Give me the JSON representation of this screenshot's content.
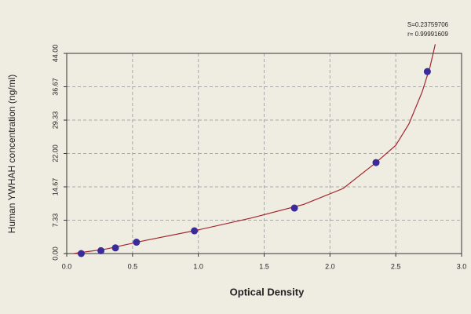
{
  "chart_data": {
    "type": "scatter",
    "x_label": "Optical Density",
    "y_label": "Human  YWHAH concentration (ng/ml)",
    "annotations": [
      "S=0.23759706",
      "r= 0.99991609"
    ],
    "x": [
      0.11,
      0.26,
      0.37,
      0.53,
      0.97,
      1.73,
      2.35,
      2.74
    ],
    "values": [
      0,
      0.625,
      1.25,
      2.5,
      5,
      10,
      20,
      40
    ],
    "color": "#3a2a9a",
    "fit": {
      "x": [
        0.05,
        0.3,
        0.6,
        1.0,
        1.4,
        1.8,
        2.1,
        2.35,
        2.5,
        2.6,
        2.7,
        2.76,
        2.8
      ],
      "values": [
        0,
        1.0,
        2.9,
        5.2,
        7.8,
        10.8,
        14.3,
        20,
        23.8,
        28.5,
        35.5,
        41,
        46
      ],
      "color": "#a3262b"
    },
    "xlim": [
      0,
      3
    ],
    "ylim": [
      0,
      44
    ],
    "xticks": [
      {
        "value": 0,
        "label": "0.0"
      },
      0.5,
      {
        "value": 1,
        "label": "1.0"
      },
      1.5,
      {
        "value": 2,
        "label": "2.0"
      },
      2.5,
      {
        "value": 3,
        "label": "3.0"
      }
    ],
    "yticks": [
      {
        "value": 0,
        "label": "0.00"
      },
      7.33,
      14.67,
      {
        "value": 22,
        "label": "22.00"
      },
      29.33,
      36.67,
      {
        "value": 44,
        "label": "44.00"
      }
    ],
    "grid": true
  }
}
